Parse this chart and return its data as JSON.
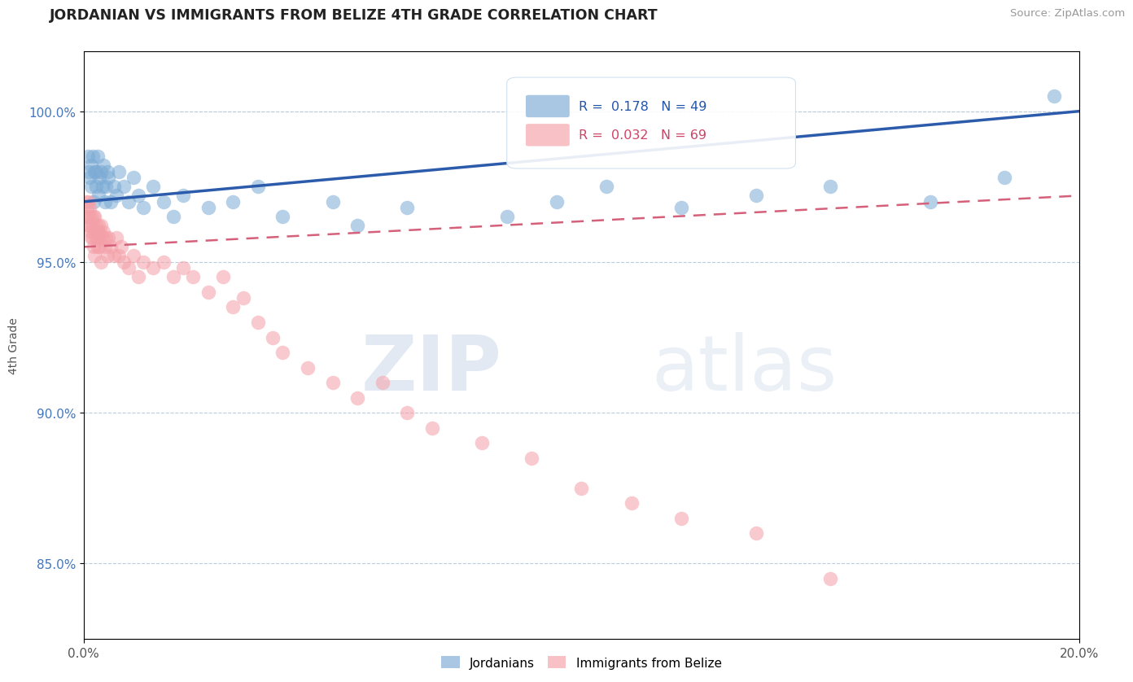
{
  "title": "JORDANIAN VS IMMIGRANTS FROM BELIZE 4TH GRADE CORRELATION CHART",
  "source": "Source: ZipAtlas.com",
  "ylabel": "4th Grade",
  "xlim": [
    0.0,
    20.0
  ],
  "ylim": [
    82.5,
    102.0
  ],
  "yticks": [
    85.0,
    90.0,
    95.0,
    100.0
  ],
  "ytick_labels": [
    "85.0%",
    "90.0%",
    "95.0%",
    "100.0%"
  ],
  "blue_R": 0.178,
  "blue_N": 49,
  "pink_R": 0.032,
  "pink_N": 69,
  "blue_color": "#7BAAD4",
  "pink_color": "#F4A0A8",
  "blue_line_color": "#2B5BAA",
  "pink_line_color": "#D4607A",
  "legend_label_blue": "Jordanians",
  "legend_label_pink": "Immigrants from Belize",
  "watermark_zip": "ZIP",
  "watermark_atlas": "atlas",
  "background_color": "#FFFFFF",
  "blue_x": [
    0.08,
    0.1,
    0.12,
    0.15,
    0.15,
    0.18,
    0.2,
    0.22,
    0.25,
    0.25,
    0.28,
    0.3,
    0.32,
    0.35,
    0.38,
    0.4,
    0.42,
    0.45,
    0.48,
    0.5,
    0.55,
    0.6,
    0.65,
    0.7,
    0.8,
    0.9,
    1.0,
    1.1,
    1.2,
    1.4,
    1.6,
    1.8,
    2.0,
    2.5,
    3.0,
    3.5,
    4.0,
    5.0,
    5.5,
    6.5,
    8.5,
    9.5,
    10.5,
    12.0,
    13.5,
    15.0,
    17.0,
    18.5,
    19.5
  ],
  "blue_y": [
    98.5,
    98.0,
    97.8,
    98.2,
    97.5,
    98.5,
    97.0,
    98.0,
    97.5,
    98.0,
    98.5,
    97.2,
    97.8,
    98.0,
    97.5,
    98.2,
    97.0,
    97.5,
    98.0,
    97.8,
    97.0,
    97.5,
    97.2,
    98.0,
    97.5,
    97.0,
    97.8,
    97.2,
    96.8,
    97.5,
    97.0,
    96.5,
    97.2,
    96.8,
    97.0,
    97.5,
    96.5,
    97.0,
    96.2,
    96.8,
    96.5,
    97.0,
    97.5,
    96.8,
    97.2,
    97.5,
    97.0,
    97.8,
    100.5
  ],
  "pink_x": [
    0.05,
    0.05,
    0.07,
    0.08,
    0.1,
    0.1,
    0.12,
    0.12,
    0.15,
    0.15,
    0.15,
    0.18,
    0.18,
    0.2,
    0.2,
    0.22,
    0.22,
    0.22,
    0.25,
    0.25,
    0.28,
    0.28,
    0.3,
    0.3,
    0.32,
    0.32,
    0.35,
    0.35,
    0.38,
    0.4,
    0.42,
    0.45,
    0.48,
    0.5,
    0.55,
    0.6,
    0.65,
    0.7,
    0.75,
    0.8,
    0.9,
    1.0,
    1.1,
    1.2,
    1.4,
    1.6,
    1.8,
    2.0,
    2.2,
    2.5,
    2.8,
    3.0,
    3.2,
    3.5,
    3.8,
    4.0,
    4.5,
    5.0,
    5.5,
    6.0,
    6.5,
    7.0,
    8.0,
    9.0,
    10.0,
    11.0,
    12.0,
    13.5,
    15.0
  ],
  "pink_y": [
    97.0,
    96.5,
    96.8,
    96.2,
    97.0,
    96.5,
    96.8,
    96.2,
    96.5,
    96.0,
    95.8,
    96.2,
    95.8,
    96.5,
    95.5,
    96.0,
    96.5,
    95.2,
    96.2,
    95.8,
    96.0,
    95.5,
    96.2,
    95.8,
    96.0,
    95.5,
    96.2,
    95.0,
    95.8,
    96.0,
    95.5,
    95.8,
    95.2,
    95.8,
    95.5,
    95.2,
    95.8,
    95.2,
    95.5,
    95.0,
    94.8,
    95.2,
    94.5,
    95.0,
    94.8,
    95.0,
    94.5,
    94.8,
    94.5,
    94.0,
    94.5,
    93.5,
    93.8,
    93.0,
    92.5,
    92.0,
    91.5,
    91.0,
    90.5,
    91.0,
    90.0,
    89.5,
    89.0,
    88.5,
    87.5,
    87.0,
    86.5,
    86.0,
    84.5
  ]
}
